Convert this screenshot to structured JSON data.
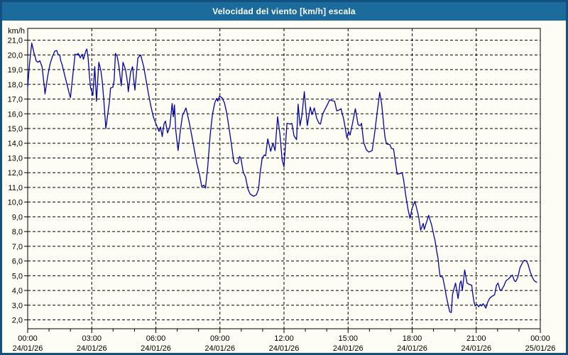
{
  "window": {
    "title": "Velocidad del viento [km/h] escala",
    "colors": {
      "titlebar": "#1b6b9d",
      "border": "#12517f",
      "background": "#fdfdf4",
      "grid": "#000000",
      "axis": "#000000",
      "line": "#0202a8",
      "title_text": "#ffffff"
    }
  },
  "chart_data": {
    "type": "line",
    "title": "Velocidad del viento [km/h] escala",
    "unit_label": "km/h",
    "ylabel": "km/h",
    "grid": "dashed",
    "legend": "none",
    "ylim": [
      1.4,
      21.8
    ],
    "xlim_hours": [
      0,
      24
    ],
    "yticks": [
      {
        "v": 21,
        "label": "21,0"
      },
      {
        "v": 20,
        "label": "20,0"
      },
      {
        "v": 19,
        "label": "19,0"
      },
      {
        "v": 18,
        "label": "18,0"
      },
      {
        "v": 17,
        "label": "17,0"
      },
      {
        "v": 16,
        "label": "16,0"
      },
      {
        "v": 15,
        "label": "15,0"
      },
      {
        "v": 14,
        "label": "14,0"
      },
      {
        "v": 13,
        "label": "13,0"
      },
      {
        "v": 12,
        "label": "12,0"
      },
      {
        "v": 11,
        "label": "11,0"
      },
      {
        "v": 10,
        "label": "10,0"
      },
      {
        "v": 9,
        "label": "9,0"
      },
      {
        "v": 8,
        "label": "8,0"
      },
      {
        "v": 7,
        "label": "7,0"
      },
      {
        "v": 6,
        "label": "6,0"
      },
      {
        "v": 5,
        "label": "5,0"
      },
      {
        "v": 4,
        "label": "4,0"
      },
      {
        "v": 3,
        "label": "3,0"
      },
      {
        "v": 2,
        "label": "2,0"
      }
    ],
    "xticks": [
      {
        "h": 0,
        "time": "00:00",
        "date": "24/01/26"
      },
      {
        "h": 3,
        "time": "03:00",
        "date": "24/01/26"
      },
      {
        "h": 6,
        "time": "06:00",
        "date": "24/01/26"
      },
      {
        "h": 9,
        "time": "09:00",
        "date": "24/01/26"
      },
      {
        "h": 12,
        "time": "12:00",
        "date": "24/01/26"
      },
      {
        "h": 15,
        "time": "15:00",
        "date": "24/01/26"
      },
      {
        "h": 18,
        "time": "18:00",
        "date": "24/01/26"
      },
      {
        "h": 21,
        "time": "21:00",
        "date": "24/01/26"
      },
      {
        "h": 24,
        "time": "00:00",
        "date": "25/01/26"
      }
    ],
    "x_minor_tick_every_hours": 1,
    "series": [
      {
        "name": "Velocidad del viento",
        "color": "#0202a8",
        "points": [
          [
            0,
            17.8
          ],
          [
            0.08,
            19.3
          ],
          [
            0.19,
            20.8
          ],
          [
            0.3,
            20.1
          ],
          [
            0.4,
            19.6
          ],
          [
            0.48,
            19.5
          ],
          [
            0.57,
            19.6
          ],
          [
            0.67,
            19.2
          ],
          [
            0.78,
            17.8
          ],
          [
            0.81,
            17.35
          ],
          [
            0.94,
            18.6
          ],
          [
            1.05,
            19.4
          ],
          [
            1.16,
            19.9
          ],
          [
            1.27,
            20.25
          ],
          [
            1.36,
            20.3
          ],
          [
            1.43,
            20.0
          ],
          [
            1.5,
            20.0
          ],
          [
            1.55,
            19.6
          ],
          [
            1.61,
            19.35
          ],
          [
            1.72,
            18.7
          ],
          [
            1.83,
            18.05
          ],
          [
            1.94,
            17.4
          ],
          [
            2.0,
            17.1
          ],
          [
            2.11,
            18.6
          ],
          [
            2.22,
            20.05
          ],
          [
            2.3,
            20.0
          ],
          [
            2.36,
            20.1
          ],
          [
            2.46,
            19.8
          ],
          [
            2.55,
            20.05
          ],
          [
            2.61,
            19.7
          ],
          [
            2.72,
            20.25
          ],
          [
            2.77,
            20.4
          ],
          [
            2.83,
            19.8
          ],
          [
            2.88,
            18.8
          ],
          [
            2.94,
            17.8
          ],
          [
            3.05,
            17.25
          ],
          [
            3.14,
            19.2
          ],
          [
            3.22,
            16.85
          ],
          [
            3.33,
            19.5
          ],
          [
            3.43,
            18.9
          ],
          [
            3.49,
            18.2
          ],
          [
            3.56,
            17.0
          ],
          [
            3.66,
            15.0
          ],
          [
            3.77,
            16.2
          ],
          [
            3.83,
            16.85
          ],
          [
            3.88,
            17.75
          ],
          [
            3.99,
            17.8
          ],
          [
            4.05,
            18.3
          ],
          [
            4.11,
            20.1
          ],
          [
            4.19,
            19.9
          ],
          [
            4.27,
            19.25
          ],
          [
            4.33,
            18.5
          ],
          [
            4.38,
            17.9
          ],
          [
            4.46,
            19.5
          ],
          [
            4.58,
            19.0
          ],
          [
            4.66,
            18.25
          ],
          [
            4.71,
            17.5
          ],
          [
            4.82,
            18.85
          ],
          [
            4.91,
            19.2
          ],
          [
            4.96,
            18.4
          ],
          [
            5.02,
            17.6
          ],
          [
            5.16,
            19.8
          ],
          [
            5.29,
            20.0
          ],
          [
            5.43,
            19.2
          ],
          [
            5.54,
            18.3
          ],
          [
            5.66,
            17.3
          ],
          [
            5.77,
            16.5
          ],
          [
            5.88,
            15.8
          ],
          [
            6.01,
            15.3
          ],
          [
            6.15,
            14.8
          ],
          [
            6.22,
            15.1
          ],
          [
            6.3,
            14.45
          ],
          [
            6.38,
            15.3
          ],
          [
            6.45,
            15.5
          ],
          [
            6.55,
            14.7
          ],
          [
            6.65,
            15.1
          ],
          [
            6.76,
            16.7
          ],
          [
            6.82,
            15.8
          ],
          [
            6.87,
            16.6
          ],
          [
            6.93,
            14.9
          ],
          [
            7.04,
            13.5
          ],
          [
            7.15,
            14.9
          ],
          [
            7.25,
            15.9
          ],
          [
            7.32,
            16.1
          ],
          [
            7.41,
            16.4
          ],
          [
            7.49,
            15.9
          ],
          [
            7.58,
            15.3
          ],
          [
            7.71,
            14.3
          ],
          [
            7.82,
            13.4
          ],
          [
            7.92,
            12.6
          ],
          [
            8.04,
            11.9
          ],
          [
            8.15,
            11.05
          ],
          [
            8.25,
            11.15
          ],
          [
            8.32,
            10.95
          ],
          [
            8.43,
            12.4
          ],
          [
            8.54,
            14.5
          ],
          [
            8.65,
            15.95
          ],
          [
            8.76,
            16.75
          ],
          [
            8.85,
            17.05
          ],
          [
            8.9,
            16.85
          ],
          [
            8.98,
            17.2
          ],
          [
            9.09,
            17.1
          ],
          [
            9.21,
            16.75
          ],
          [
            9.31,
            16.1
          ],
          [
            9.41,
            15.2
          ],
          [
            9.54,
            13.9
          ],
          [
            9.65,
            12.75
          ],
          [
            9.76,
            12.6
          ],
          [
            9.85,
            12.65
          ],
          [
            9.92,
            13.1
          ],
          [
            9.98,
            13.0
          ],
          [
            10.09,
            12.05
          ],
          [
            10.2,
            11.7
          ],
          [
            10.31,
            10.9
          ],
          [
            10.41,
            10.55
          ],
          [
            10.58,
            10.4
          ],
          [
            10.71,
            10.5
          ],
          [
            10.81,
            10.9
          ],
          [
            10.88,
            11.95
          ],
          [
            10.98,
            13.0
          ],
          [
            11.08,
            13.2
          ],
          [
            11.14,
            13.15
          ],
          [
            11.24,
            14.3
          ],
          [
            11.38,
            13.45
          ],
          [
            11.48,
            14.0
          ],
          [
            11.58,
            13.5
          ],
          [
            11.7,
            15.8
          ],
          [
            11.81,
            14.6
          ],
          [
            11.91,
            12.9
          ],
          [
            12.0,
            12.4
          ],
          [
            12.14,
            15.35
          ],
          [
            12.31,
            15.3
          ],
          [
            12.37,
            15.35
          ],
          [
            12.47,
            14.5
          ],
          [
            12.59,
            14.25
          ],
          [
            12.66,
            16.65
          ],
          [
            12.75,
            15.2
          ],
          [
            12.84,
            15.9
          ],
          [
            12.95,
            17.5
          ],
          [
            13.09,
            15.2
          ],
          [
            13.23,
            16.45
          ],
          [
            13.31,
            15.95
          ],
          [
            13.42,
            16.4
          ],
          [
            13.53,
            15.7
          ],
          [
            13.64,
            15.35
          ],
          [
            13.71,
            15.3
          ],
          [
            13.81,
            16.0
          ],
          [
            13.97,
            16.45
          ],
          [
            14.14,
            16.95
          ],
          [
            14.24,
            16.9
          ],
          [
            14.37,
            16.85
          ],
          [
            14.47,
            16.2
          ],
          [
            14.57,
            16.25
          ],
          [
            14.67,
            16.35
          ],
          [
            14.8,
            15.6
          ],
          [
            14.95,
            14.35
          ],
          [
            15.02,
            14.8
          ],
          [
            15.09,
            14.55
          ],
          [
            15.2,
            15.3
          ],
          [
            15.34,
            16.35
          ],
          [
            15.47,
            15.25
          ],
          [
            15.57,
            15.2
          ],
          [
            15.63,
            15.35
          ],
          [
            15.73,
            14.05
          ],
          [
            15.86,
            13.55
          ],
          [
            15.97,
            13.4
          ],
          [
            16.13,
            13.5
          ],
          [
            16.23,
            14.55
          ],
          [
            16.37,
            16.2
          ],
          [
            16.48,
            17.45
          ],
          [
            16.57,
            16.7
          ],
          [
            16.67,
            15.2
          ],
          [
            16.73,
            14.4
          ],
          [
            16.8,
            13.95
          ],
          [
            16.96,
            13.9
          ],
          [
            17.03,
            13.65
          ],
          [
            17.13,
            13.6
          ],
          [
            17.2,
            12.9
          ],
          [
            17.3,
            11.9
          ],
          [
            17.46,
            11.95
          ],
          [
            17.53,
            12.0
          ],
          [
            17.6,
            11.5
          ],
          [
            17.69,
            10.55
          ],
          [
            17.8,
            9.55
          ],
          [
            17.9,
            8.9
          ],
          [
            18.0,
            9.6
          ],
          [
            18.13,
            10.05
          ],
          [
            18.3,
            9.05
          ],
          [
            18.4,
            8.1
          ],
          [
            18.52,
            8.55
          ],
          [
            18.57,
            8.15
          ],
          [
            18.77,
            9.1
          ],
          [
            18.91,
            8.45
          ],
          [
            19.02,
            7.7
          ],
          [
            19.07,
            7.4
          ],
          [
            19.15,
            6.65
          ],
          [
            19.21,
            6.2
          ],
          [
            19.26,
            5.5
          ],
          [
            19.31,
            4.95
          ],
          [
            19.43,
            4.9
          ],
          [
            19.53,
            4.2
          ],
          [
            19.6,
            3.6
          ],
          [
            19.66,
            3.2
          ],
          [
            19.76,
            2.55
          ],
          [
            19.83,
            2.5
          ],
          [
            19.89,
            3.75
          ],
          [
            20.03,
            4.5
          ],
          [
            20.15,
            3.45
          ],
          [
            20.24,
            4.5
          ],
          [
            20.29,
            4.65
          ],
          [
            20.35,
            4.0
          ],
          [
            20.46,
            5.4
          ],
          [
            20.52,
            4.9
          ],
          [
            20.57,
            4.5
          ],
          [
            20.69,
            4.4
          ],
          [
            20.79,
            4.35
          ],
          [
            20.84,
            3.75
          ],
          [
            20.9,
            3.2
          ],
          [
            20.95,
            2.95
          ],
          [
            21.03,
            3.05
          ],
          [
            21.12,
            2.9
          ],
          [
            21.19,
            3.05
          ],
          [
            21.25,
            2.95
          ],
          [
            21.32,
            3.1
          ],
          [
            21.39,
            2.95
          ],
          [
            21.45,
            2.8
          ],
          [
            21.52,
            3.15
          ],
          [
            21.57,
            3.3
          ],
          [
            21.62,
            3.45
          ],
          [
            21.73,
            3.6
          ],
          [
            21.86,
            3.7
          ],
          [
            21.95,
            4.35
          ],
          [
            22.02,
            4.5
          ],
          [
            22.12,
            4.0
          ],
          [
            22.19,
            4.05
          ],
          [
            22.29,
            4.3
          ],
          [
            22.39,
            4.65
          ],
          [
            22.52,
            4.8
          ],
          [
            22.62,
            4.95
          ],
          [
            22.69,
            5.05
          ],
          [
            22.79,
            4.65
          ],
          [
            22.85,
            4.6
          ],
          [
            22.95,
            4.9
          ],
          [
            23.05,
            5.55
          ],
          [
            23.19,
            5.95
          ],
          [
            23.25,
            6.05
          ],
          [
            23.35,
            6.0
          ],
          [
            23.42,
            5.8
          ],
          [
            23.52,
            5.3
          ],
          [
            23.62,
            4.9
          ],
          [
            23.72,
            4.65
          ],
          [
            23.83,
            4.55
          ]
        ]
      }
    ]
  }
}
